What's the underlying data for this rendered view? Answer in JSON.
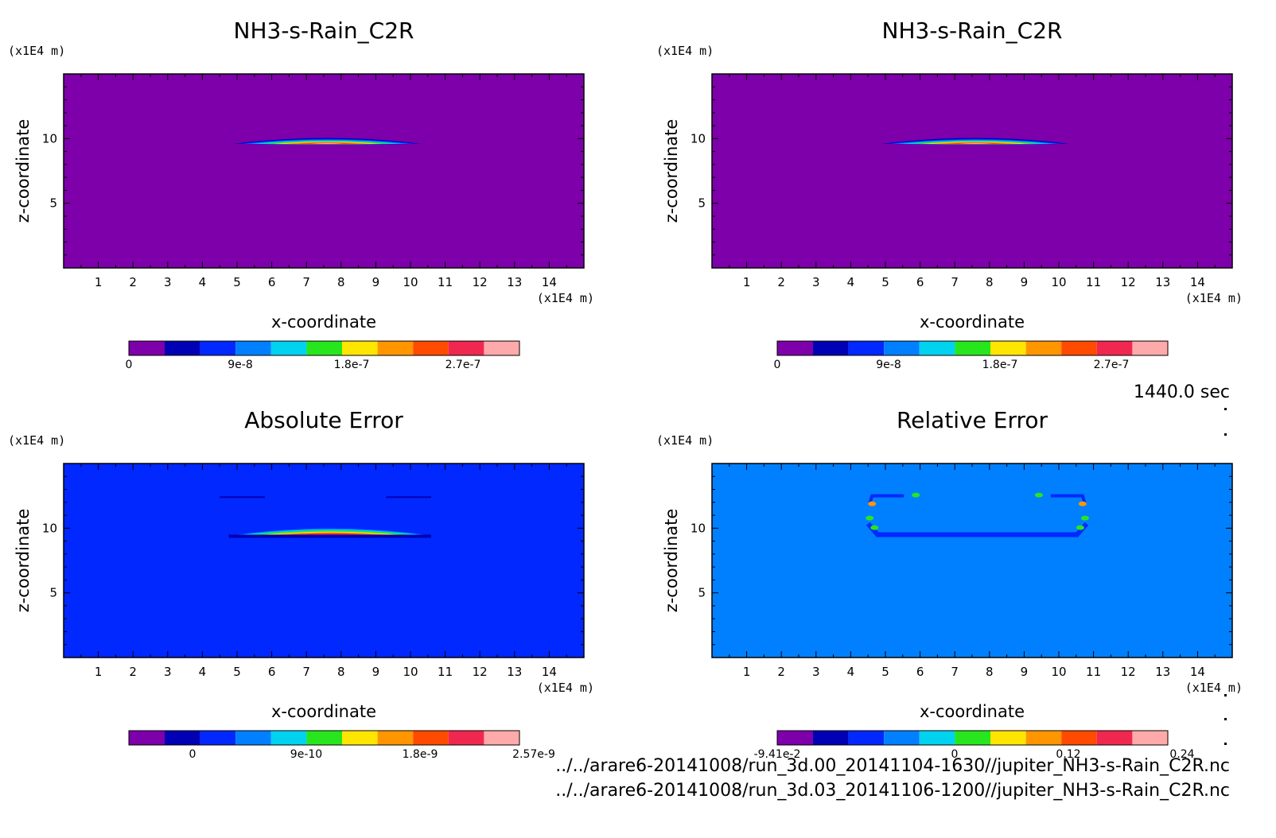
{
  "figure": {
    "time_label": "1440.0 sec",
    "file_paths": [
      "../../arare6-20141008/run_3d.00_20141104-1630//jupiter_NH3-s-Rain_C2R.nc",
      "../../arare6-20141008/run_3d.03_20141106-1200//jupiter_NH3-s-Rain_C2R.nc"
    ]
  },
  "chart_data": [
    {
      "type": "heatmap",
      "title": "NH3-s-Rain_C2R",
      "xlabel": "x-coordinate",
      "ylabel": "z-coordinate",
      "x_unit": "(x1E4 m)",
      "y_unit": "(x1E4 m)",
      "xlim": [
        0,
        15
      ],
      "ylim": [
        0,
        15
      ],
      "x_ticks": [
        1,
        2,
        3,
        4,
        5,
        6,
        7,
        8,
        9,
        10,
        11,
        12,
        13,
        14
      ],
      "y_ticks": [
        5,
        10
      ],
      "background_color": "#7d00aa",
      "colorbar": {
        "colors": [
          "#7d00aa",
          "#0000b4",
          "#0028ff",
          "#0080ff",
          "#00d2f0",
          "#28e61e",
          "#ffe600",
          "#ff9600",
          "#ff4b00",
          "#f02850",
          "#ffaaaa"
        ],
        "labels": [
          "0",
          "9e-8",
          "1.8e-7",
          "2.7e-7"
        ]
      },
      "features": [
        {
          "shape": "lens",
          "x_range": [
            4.9,
            10.3
          ],
          "z_range": [
            9.6,
            10.1
          ],
          "peak_value": "2.7e-7"
        }
      ]
    },
    {
      "type": "heatmap",
      "title": "NH3-s-Rain_C2R",
      "xlabel": "x-coordinate",
      "ylabel": "z-coordinate",
      "x_unit": "(x1E4 m)",
      "y_unit": "(x1E4 m)",
      "xlim": [
        0,
        15
      ],
      "ylim": [
        0,
        15
      ],
      "x_ticks": [
        1,
        2,
        3,
        4,
        5,
        6,
        7,
        8,
        9,
        10,
        11,
        12,
        13,
        14
      ],
      "y_ticks": [
        5,
        10
      ],
      "background_color": "#7d00aa",
      "colorbar": {
        "colors": [
          "#7d00aa",
          "#0000b4",
          "#0028ff",
          "#0080ff",
          "#00d2f0",
          "#28e61e",
          "#ffe600",
          "#ff9600",
          "#ff4b00",
          "#f02850",
          "#ffaaaa"
        ],
        "labels": [
          "0",
          "9e-8",
          "1.8e-7",
          "2.7e-7"
        ]
      },
      "features": [
        {
          "shape": "lens",
          "x_range": [
            4.9,
            10.3
          ],
          "z_range": [
            9.6,
            10.1
          ],
          "peak_value": "2.7e-7"
        }
      ]
    },
    {
      "type": "heatmap",
      "title": "Absolute Error",
      "xlabel": "x-coordinate",
      "ylabel": "z-coordinate",
      "x_unit": "(x1E4 m)",
      "y_unit": "(x1E4 m)",
      "xlim": [
        0,
        15
      ],
      "ylim": [
        0,
        15
      ],
      "x_ticks": [
        1,
        2,
        3,
        4,
        5,
        6,
        7,
        8,
        9,
        10,
        11,
        12,
        13,
        14
      ],
      "y_ticks": [
        5,
        10
      ],
      "background_color": "#0028ff",
      "colorbar": {
        "colors": [
          "#7d00aa",
          "#0000b4",
          "#0028ff",
          "#0080ff",
          "#00d2f0",
          "#28e61e",
          "#ffe600",
          "#ff9600",
          "#ff4b00",
          "#f02850",
          "#ffaaaa"
        ],
        "labels": [
          "0",
          "9e-10",
          "1.8e-9",
          "2.57e-9"
        ]
      },
      "features": [
        {
          "shape": "lens",
          "x_range": [
            4.9,
            10.5
          ],
          "z_range": [
            9.5,
            10.1
          ],
          "peak_value": "2.57e-9"
        },
        {
          "shape": "line",
          "x_range": [
            4.5,
            5.8
          ],
          "z_level": 12.4
        },
        {
          "shape": "line",
          "x_range": [
            9.3,
            10.6
          ],
          "z_level": 12.4
        }
      ]
    },
    {
      "type": "heatmap",
      "title": "Relative Error",
      "xlabel": "x-coordinate",
      "ylabel": "z-coordinate",
      "x_unit": "(x1E4 m)",
      "y_unit": "(x1E4 m)",
      "xlim": [
        0,
        15
      ],
      "ylim": [
        0,
        15
      ],
      "x_ticks": [
        1,
        2,
        3,
        4,
        5,
        6,
        7,
        8,
        9,
        10,
        11,
        12,
        13,
        14
      ],
      "y_ticks": [
        5,
        10
      ],
      "background_color": "#0080ff",
      "colorbar": {
        "colors": [
          "#7d00aa",
          "#0000b4",
          "#0028ff",
          "#0080ff",
          "#00d2f0",
          "#28e61e",
          "#ffe600",
          "#ff9600",
          "#ff4b00",
          "#f02850",
          "#ffaaaa"
        ],
        "labels": [
          "-9.41e-2",
          "0",
          "0.12",
          "0.24"
        ]
      },
      "features": [
        {
          "shape": "outline-box",
          "x_range": [
            4.5,
            10.8
          ],
          "z_range": [
            9.5,
            12.5
          ]
        }
      ]
    }
  ]
}
